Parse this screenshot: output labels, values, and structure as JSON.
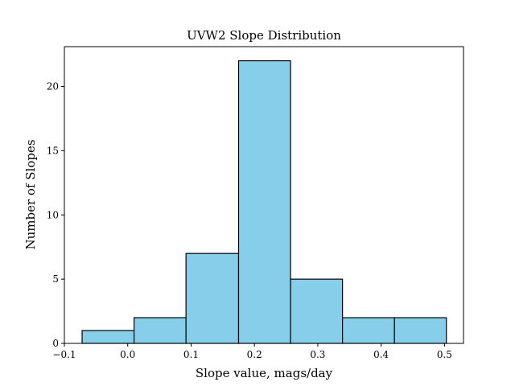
{
  "chart_data": {
    "type": "bar",
    "title": "UVW2 Slope Distribution",
    "xlabel": "Slope value, mags/day",
    "ylabel": "Number of Slopes",
    "xlim": [
      -0.1,
      0.53
    ],
    "ylim": [
      0,
      23.1
    ],
    "grid": false,
    "bar_color": "#87CEEB",
    "edge_color": "#000000",
    "bins": [
      {
        "start": -0.072,
        "end": 0.01,
        "count": 1
      },
      {
        "start": 0.01,
        "end": 0.092,
        "count": 2
      },
      {
        "start": 0.092,
        "end": 0.175,
        "count": 7
      },
      {
        "start": 0.175,
        "end": 0.257,
        "count": 22
      },
      {
        "start": 0.257,
        "end": 0.339,
        "count": 5
      },
      {
        "start": 0.339,
        "end": 0.421,
        "count": 2
      },
      {
        "start": 0.421,
        "end": 0.503,
        "count": 2
      }
    ],
    "x_ticks": [
      {
        "value": -0.1,
        "label": "−0.1"
      },
      {
        "value": 0.0,
        "label": "0.0"
      },
      {
        "value": 0.1,
        "label": "0.1"
      },
      {
        "value": 0.2,
        "label": "0.2"
      },
      {
        "value": 0.3,
        "label": "0.3"
      },
      {
        "value": 0.4,
        "label": "0.4"
      },
      {
        "value": 0.5,
        "label": "0.5"
      }
    ],
    "y_ticks": [
      {
        "value": 0,
        "label": "0"
      },
      {
        "value": 5,
        "label": "5"
      },
      {
        "value": 10,
        "label": "10"
      },
      {
        "value": 15,
        "label": "15"
      },
      {
        "value": 20,
        "label": "20"
      }
    ]
  }
}
